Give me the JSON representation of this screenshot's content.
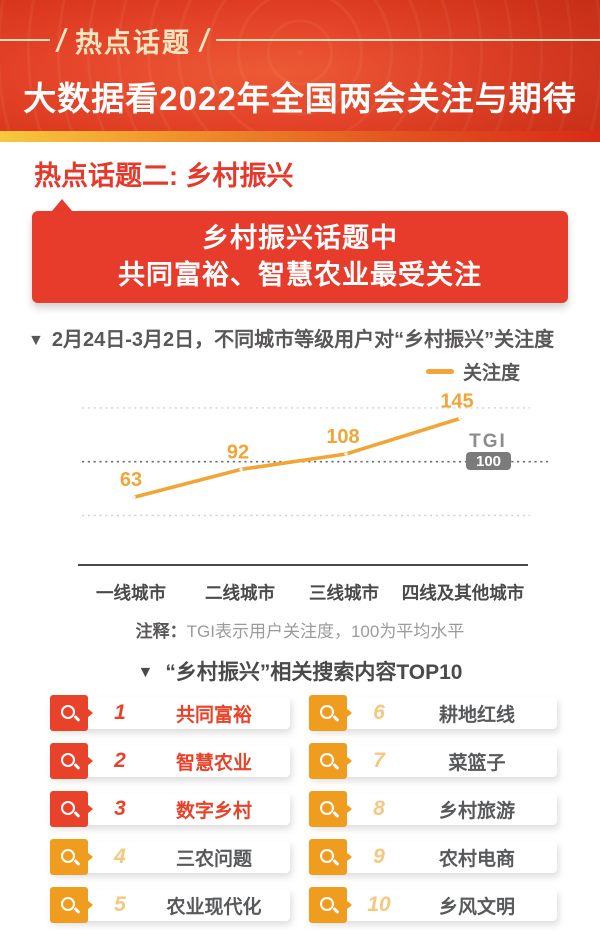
{
  "header": {
    "badge_label": "热点话题",
    "title": "大数据看2022年全国两会关注与期待"
  },
  "section": {
    "heading": "热点话题二: 乡村振兴"
  },
  "banner": {
    "line1": "乡村振兴话题中",
    "line2": "共同富裕、智慧农业最受关注"
  },
  "markers": {
    "triangle_down": "▼"
  },
  "chart_data": {
    "type": "line",
    "title": "2月24日-3月2日，不同城市等级用户对“乡村振兴”关注度",
    "categories": [
      "一线城市",
      "二线城市",
      "三线城市",
      "四线及其他城市"
    ],
    "series": [
      {
        "name": "关注度",
        "values": [
          63,
          92,
          108,
          145
        ]
      }
    ],
    "reference_line": {
      "label": "TGI",
      "value": 100
    },
    "ylim": [
      44,
      156
    ],
    "grid": "dotted-horizontal",
    "legend_position": "top-right",
    "line_color": "#F2A537",
    "value_labels": true
  },
  "chart_note": {
    "label": "注释：",
    "text": "TGI表示用户关注度，100为平均水平"
  },
  "top10": {
    "title": "“乡村振兴”相关搜索内容TOP10",
    "items": [
      {
        "rank": "1",
        "label": "共同富裕",
        "highlight": true
      },
      {
        "rank": "2",
        "label": "智慧农业",
        "highlight": true
      },
      {
        "rank": "3",
        "label": "数字乡村",
        "highlight": true
      },
      {
        "rank": "4",
        "label": "三农问题",
        "highlight": false
      },
      {
        "rank": "5",
        "label": "农业现代化",
        "highlight": false
      },
      {
        "rank": "6",
        "label": "耕地红线",
        "highlight": false
      },
      {
        "rank": "7",
        "label": "菜篮子",
        "highlight": false
      },
      {
        "rank": "8",
        "label": "乡村旅游",
        "highlight": false
      },
      {
        "rank": "9",
        "label": "农村电商",
        "highlight": false
      },
      {
        "rank": "10",
        "label": "乡风文明",
        "highlight": false
      }
    ]
  },
  "colors": {
    "header_red": "#E5452A",
    "strip_gradient": [
      "#F7C83E",
      "#EE8E2B",
      "#D92B17"
    ],
    "banner_red": "#E73B2C",
    "heading_red": "#E6392B",
    "line_orange": "#F2A537",
    "tgi_badge_gray": "#7B7B7B",
    "item_red": "#E8432A",
    "item_orange": "#F09C1E",
    "rank_light_orange": "#F6C77E",
    "text_dark": "#4A4A4A"
  }
}
